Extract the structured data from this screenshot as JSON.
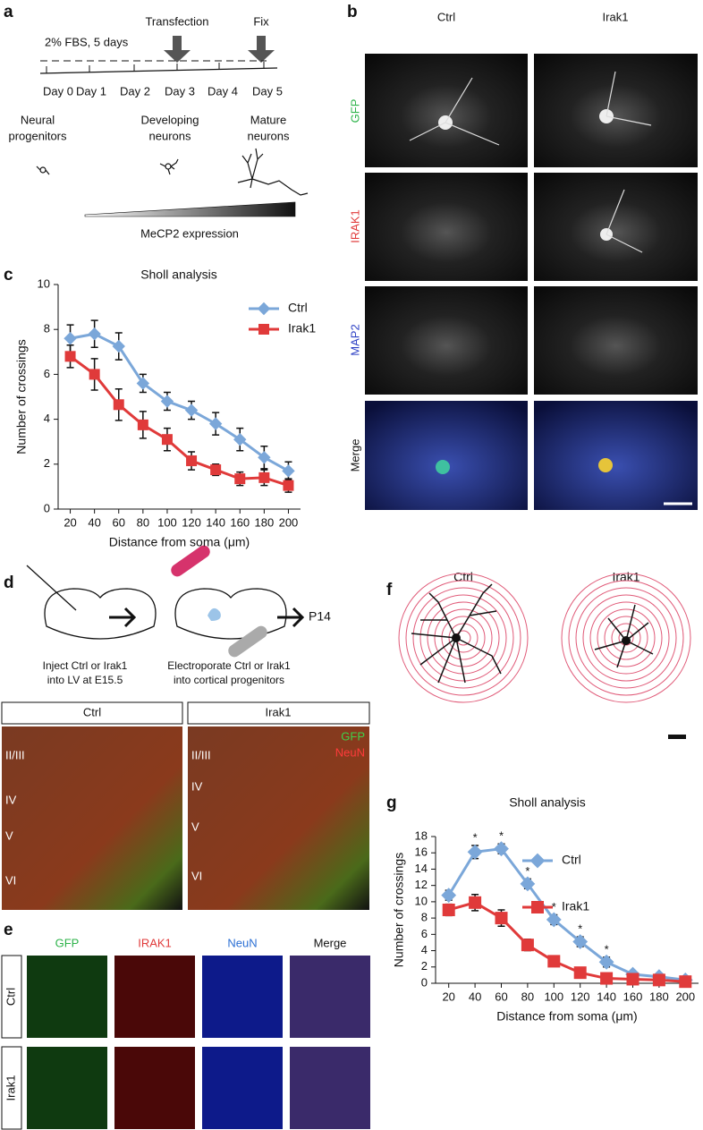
{
  "panel_labels": [
    "a",
    "b",
    "c",
    "d",
    "e",
    "f",
    "g"
  ],
  "panel_a": {
    "medium": "2% FBS, 5 days",
    "events": [
      "Transfection",
      "Fix"
    ],
    "days": [
      "Day 0",
      "Day 1",
      "Day 2",
      "Day 3",
      "Day 4",
      "Day 5"
    ],
    "stages": [
      [
        "Neural",
        "progenitors"
      ],
      [
        "Developing",
        "neurons"
      ],
      [
        "Mature",
        "neurons"
      ]
    ],
    "expression": "MeCP2 expression"
  },
  "panel_b": {
    "columns": [
      "Ctrl",
      "Irak1"
    ],
    "rows": [
      "GFP",
      "IRAK1",
      "MAP2",
      "Merge"
    ]
  },
  "panel_d": {
    "step1": [
      "Inject Ctrl or Irak1",
      "into LV at E15.5"
    ],
    "step2": [
      "Electroporate Ctrl or Irak1",
      "into cortical progenitors"
    ],
    "end": "P14",
    "columns": [
      "Ctrl",
      "Irak1"
    ],
    "layers": [
      "II/III",
      "IV",
      "V",
      "VI"
    ],
    "stains": [
      "GFP",
      "NeuN"
    ]
  },
  "panel_e": {
    "columns": [
      "GFP",
      "IRAK1",
      "NeuN",
      "Merge"
    ],
    "rows": [
      "Ctrl",
      "Irak1"
    ]
  },
  "panel_f": {
    "columns": [
      "Ctrl",
      "Irak1"
    ]
  },
  "chart_data": [
    {
      "type": "line",
      "title": "Sholl analysis",
      "x_label": "Distance from soma (μm)",
      "y_label": "Number of crossings",
      "x": [
        20,
        40,
        60,
        80,
        100,
        120,
        140,
        160,
        180,
        200
      ],
      "xlim": [
        10,
        210
      ],
      "xticks": [
        20,
        40,
        60,
        80,
        100,
        120,
        140,
        160,
        180,
        200
      ],
      "ylim": [
        0,
        10
      ],
      "yticks": [
        0,
        2,
        4,
        6,
        8,
        10
      ],
      "series": [
        {
          "name": "Ctrl",
          "color": "#7ba7d9",
          "marker": "diamond",
          "values": [
            7.6,
            7.8,
            7.25,
            5.6,
            4.8,
            4.4,
            3.8,
            3.1,
            2.3,
            1.7
          ],
          "errors": [
            0.6,
            0.6,
            0.6,
            0.4,
            0.4,
            0.4,
            0.5,
            0.5,
            0.5,
            0.4
          ]
        },
        {
          "name": "Irak1",
          "color": "#e03a3a",
          "marker": "square",
          "values": [
            6.8,
            6.0,
            4.65,
            3.75,
            3.1,
            2.15,
            1.75,
            1.35,
            1.4,
            1.05
          ],
          "errors": [
            0.5,
            0.7,
            0.7,
            0.6,
            0.5,
            0.4,
            0.25,
            0.3,
            0.35,
            0.3
          ]
        }
      ]
    },
    {
      "type": "line",
      "title": "Sholl analysis",
      "x_label": "Distance from soma (μm)",
      "y_label": "Number of crossings",
      "x": [
        20,
        40,
        60,
        80,
        100,
        120,
        140,
        160,
        180,
        200
      ],
      "xlim": [
        10,
        210
      ],
      "xticks": [
        20,
        40,
        60,
        80,
        100,
        120,
        140,
        160,
        180,
        200
      ],
      "ylim": [
        0,
        18
      ],
      "yticks": [
        0,
        2,
        4,
        6,
        8,
        10,
        12,
        14,
        16,
        18
      ],
      "series": [
        {
          "name": "Ctrl",
          "color": "#7ba7d9",
          "marker": "diamond",
          "values": [
            10.8,
            16.1,
            16.5,
            12.2,
            7.8,
            5.1,
            2.6,
            1.1,
            0.8,
            0.4
          ],
          "errors": [
            0.6,
            0.8,
            0.6,
            0.6,
            0.6,
            0.6,
            0.6,
            0.3,
            0.2,
            0.1
          ]
        },
        {
          "name": "Irak1",
          "color": "#e03a3a",
          "marker": "square",
          "values": [
            9.0,
            9.9,
            8.0,
            4.7,
            2.7,
            1.3,
            0.6,
            0.5,
            0.4,
            0.2
          ],
          "errors": [
            0.7,
            1.0,
            1.0,
            0.7,
            0.5,
            0.2,
            0.2,
            0.2,
            0.2,
            0.1
          ]
        }
      ],
      "annotations": [
        {
          "x": 40,
          "text": "*"
        },
        {
          "x": 60,
          "text": "*"
        },
        {
          "x": 80,
          "text": "*"
        },
        {
          "x": 100,
          "text": "*"
        },
        {
          "x": 120,
          "text": "*"
        },
        {
          "x": 140,
          "text": "*"
        }
      ]
    }
  ]
}
